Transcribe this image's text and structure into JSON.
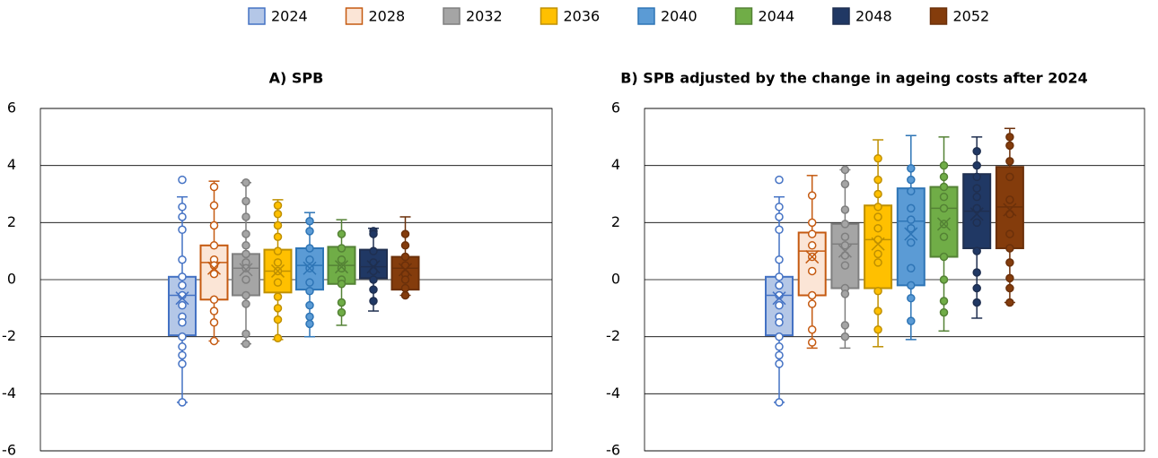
{
  "chart_data": [
    {
      "type": "box",
      "title": "A) SPB",
      "ylim": [
        -6,
        6
      ],
      "yticks": [
        -6,
        -4,
        -2,
        0,
        2,
        4,
        6
      ],
      "grid": true,
      "series": [
        {
          "name": "2024",
          "color": "#b4c7e7",
          "edge": "#4472c4",
          "marker_fill": "#ffffff",
          "min": -4.3,
          "q1": -1.95,
          "median": -0.55,
          "q3": 0.1,
          "max": 2.9,
          "mean": -0.65,
          "points": [
            3.5,
            2.55,
            2.2,
            1.75,
            0.7,
            0.1,
            -0.2,
            -0.55,
            -0.9,
            -1.3,
            -1.5,
            -2.0,
            -2.35,
            -2.65,
            -2.95,
            -4.3
          ]
        },
        {
          "name": "2028",
          "color": "#fbe5d6",
          "edge": "#c55a11",
          "marker_fill": "#ffffff",
          "min": -2.15,
          "q1": -0.7,
          "median": 0.6,
          "q3": 1.2,
          "max": 3.45,
          "mean": 0.4,
          "points": [
            3.25,
            2.6,
            1.9,
            1.2,
            0.7,
            0.5,
            0.2,
            -0.7,
            -1.1,
            -1.5,
            -2.15
          ]
        },
        {
          "name": "2032",
          "color": "#a5a5a5",
          "edge": "#7f7f7f",
          "marker_fill": "#a5a5a5",
          "min": -2.25,
          "q1": -0.55,
          "median": 0.4,
          "q3": 0.9,
          "max": 3.4,
          "mean": 0.35,
          "points": [
            3.4,
            2.75,
            2.2,
            1.6,
            1.2,
            0.9,
            0.6,
            0.4,
            0,
            -0.55,
            -0.85,
            -1.9,
            -2.25
          ]
        },
        {
          "name": "2036",
          "color": "#ffc000",
          "edge": "#bf9000",
          "marker_fill": "#ffc000",
          "min": -2.1,
          "q1": -0.45,
          "median": 0.3,
          "q3": 1.05,
          "max": 2.8,
          "mean": 0.3,
          "points": [
            2.6,
            2.3,
            1.9,
            1.5,
            1.0,
            0.6,
            0.3,
            -0.1,
            -0.6,
            -1.0,
            -1.4,
            -2.05
          ]
        },
        {
          "name": "2040",
          "color": "#5b9bd5",
          "edge": "#2e75b6",
          "marker_fill": "#5b9bd5",
          "min": -2.0,
          "q1": -0.35,
          "median": 0.5,
          "q3": 1.1,
          "max": 2.35,
          "mean": 0.4,
          "points": [
            2.05,
            1.7,
            1.1,
            0.7,
            0.4,
            -0.1,
            -0.4,
            -0.9,
            -1.3,
            -1.55
          ]
        },
        {
          "name": "2044",
          "color": "#70ad47",
          "edge": "#548235",
          "marker_fill": "#70ad47",
          "min": -1.6,
          "q1": -0.15,
          "median": 0.5,
          "q3": 1.15,
          "max": 2.1,
          "mean": 0.45,
          "points": [
            1.6,
            1.1,
            0.7,
            0.4,
            0,
            -0.15,
            -0.8,
            -1.15
          ]
        },
        {
          "name": "2048",
          "color": "#203864",
          "edge": "#1f2f50",
          "marker_fill": "#203864",
          "min": -1.1,
          "q1": 0.05,
          "median": 0.45,
          "q3": 1.05,
          "max": 1.8,
          "mean": 0.45,
          "points": [
            1.7,
            1.6,
            1.0,
            0.6,
            0.3,
            0,
            -0.35,
            -0.75
          ]
        },
        {
          "name": "2052",
          "color": "#843c0c",
          "edge": "#6b300a",
          "marker_fill": "#843c0c",
          "min": -0.55,
          "q1": -0.35,
          "median": 0.4,
          "q3": 0.8,
          "max": 2.2,
          "mean": 0.35,
          "points": [
            1.6,
            1.2,
            0.8,
            0.5,
            0.2,
            0,
            -0.3,
            -0.55
          ]
        }
      ]
    },
    {
      "type": "box",
      "title": "B) SPB adjusted by the change in ageing costs after 2024",
      "ylim": [
        -6,
        6
      ],
      "yticks": [
        -6,
        -4,
        -2,
        0,
        2,
        4,
        6
      ],
      "grid": true,
      "series": [
        {
          "color": "#b4c7e7",
          "edge": "#4472c4",
          "marker_fill": "#ffffff",
          "min": -4.3,
          "q1": -1.95,
          "median": -0.55,
          "q3": 0.1,
          "max": 2.9,
          "mean": -0.65,
          "points": [
            3.5,
            2.55,
            2.2,
            1.75,
            0.7,
            0.1,
            -0.2,
            -0.55,
            -0.9,
            -1.3,
            -1.5,
            -2.0,
            -2.35,
            -2.65,
            -2.95,
            -4.3
          ]
        },
        {
          "color": "#fbe5d6",
          "edge": "#c55a11",
          "marker_fill": "#ffffff",
          "min": -2.4,
          "q1": -0.55,
          "median": 1.0,
          "q3": 1.65,
          "max": 3.65,
          "mean": 0.8,
          "points": [
            2.95,
            2.0,
            1.6,
            1.2,
            0.8,
            0.3,
            -0.55,
            -0.85,
            -1.75,
            -2.2
          ]
        },
        {
          "color": "#a5a5a5",
          "edge": "#7f7f7f",
          "marker_fill": "#a5a5a5",
          "min": -2.4,
          "q1": -0.3,
          "median": 1.25,
          "q3": 1.95,
          "max": 3.85,
          "mean": 1.0,
          "points": [
            3.85,
            3.35,
            2.45,
            1.95,
            1.5,
            1.2,
            0.85,
            0.5,
            -0.3,
            -0.5,
            -1.6,
            -2.0
          ]
        },
        {
          "color": "#ffc000",
          "edge": "#bf9000",
          "marker_fill": "#ffc000",
          "min": -2.35,
          "q1": -0.3,
          "median": 1.4,
          "q3": 2.6,
          "max": 4.9,
          "mean": 1.25,
          "points": [
            4.25,
            3.5,
            3.0,
            2.55,
            2.2,
            1.8,
            1.4,
            0.9,
            0.6,
            -0.4,
            -1.1,
            -1.75
          ]
        },
        {
          "color": "#5b9bd5",
          "edge": "#2e75b6",
          "marker_fill": "#5b9bd5",
          "min": -2.1,
          "q1": -0.2,
          "median": 2.05,
          "q3": 3.2,
          "max": 5.05,
          "mean": 1.6,
          "points": [
            3.9,
            3.5,
            3.1,
            2.5,
            2.1,
            1.8,
            1.3,
            0.4,
            -0.2,
            -0.65,
            -1.45
          ]
        },
        {
          "color": "#70ad47",
          "edge": "#548235",
          "marker_fill": "#70ad47",
          "min": -1.8,
          "q1": 0.8,
          "median": 2.5,
          "q3": 3.25,
          "max": 5.0,
          "mean": 1.95,
          "points": [
            4.0,
            3.6,
            3.25,
            2.9,
            2.5,
            1.95,
            1.5,
            0.8,
            0,
            -0.75,
            -1.15
          ]
        },
        {
          "color": "#203864",
          "edge": "#1f2f50",
          "marker_fill": "#203864",
          "min": -1.35,
          "q1": 1.1,
          "median": 2.4,
          "q3": 3.7,
          "max": 5.0,
          "mean": 2.3,
          "points": [
            4.5,
            4.0,
            3.6,
            3.2,
            2.9,
            2.5,
            2.0,
            1.0,
            0.25,
            -0.3,
            -0.8
          ]
        },
        {
          "color": "#843c0c",
          "edge": "#6b300a",
          "marker_fill": "#843c0c",
          "min": -0.8,
          "q1": 1.1,
          "median": 2.55,
          "q3": 3.95,
          "max": 5.3,
          "mean": 2.45,
          "points": [
            5.0,
            4.7,
            4.15,
            3.6,
            2.8,
            2.3,
            1.6,
            1.1,
            0.6,
            0.05,
            -0.3,
            -0.8
          ]
        }
      ]
    }
  ]
}
